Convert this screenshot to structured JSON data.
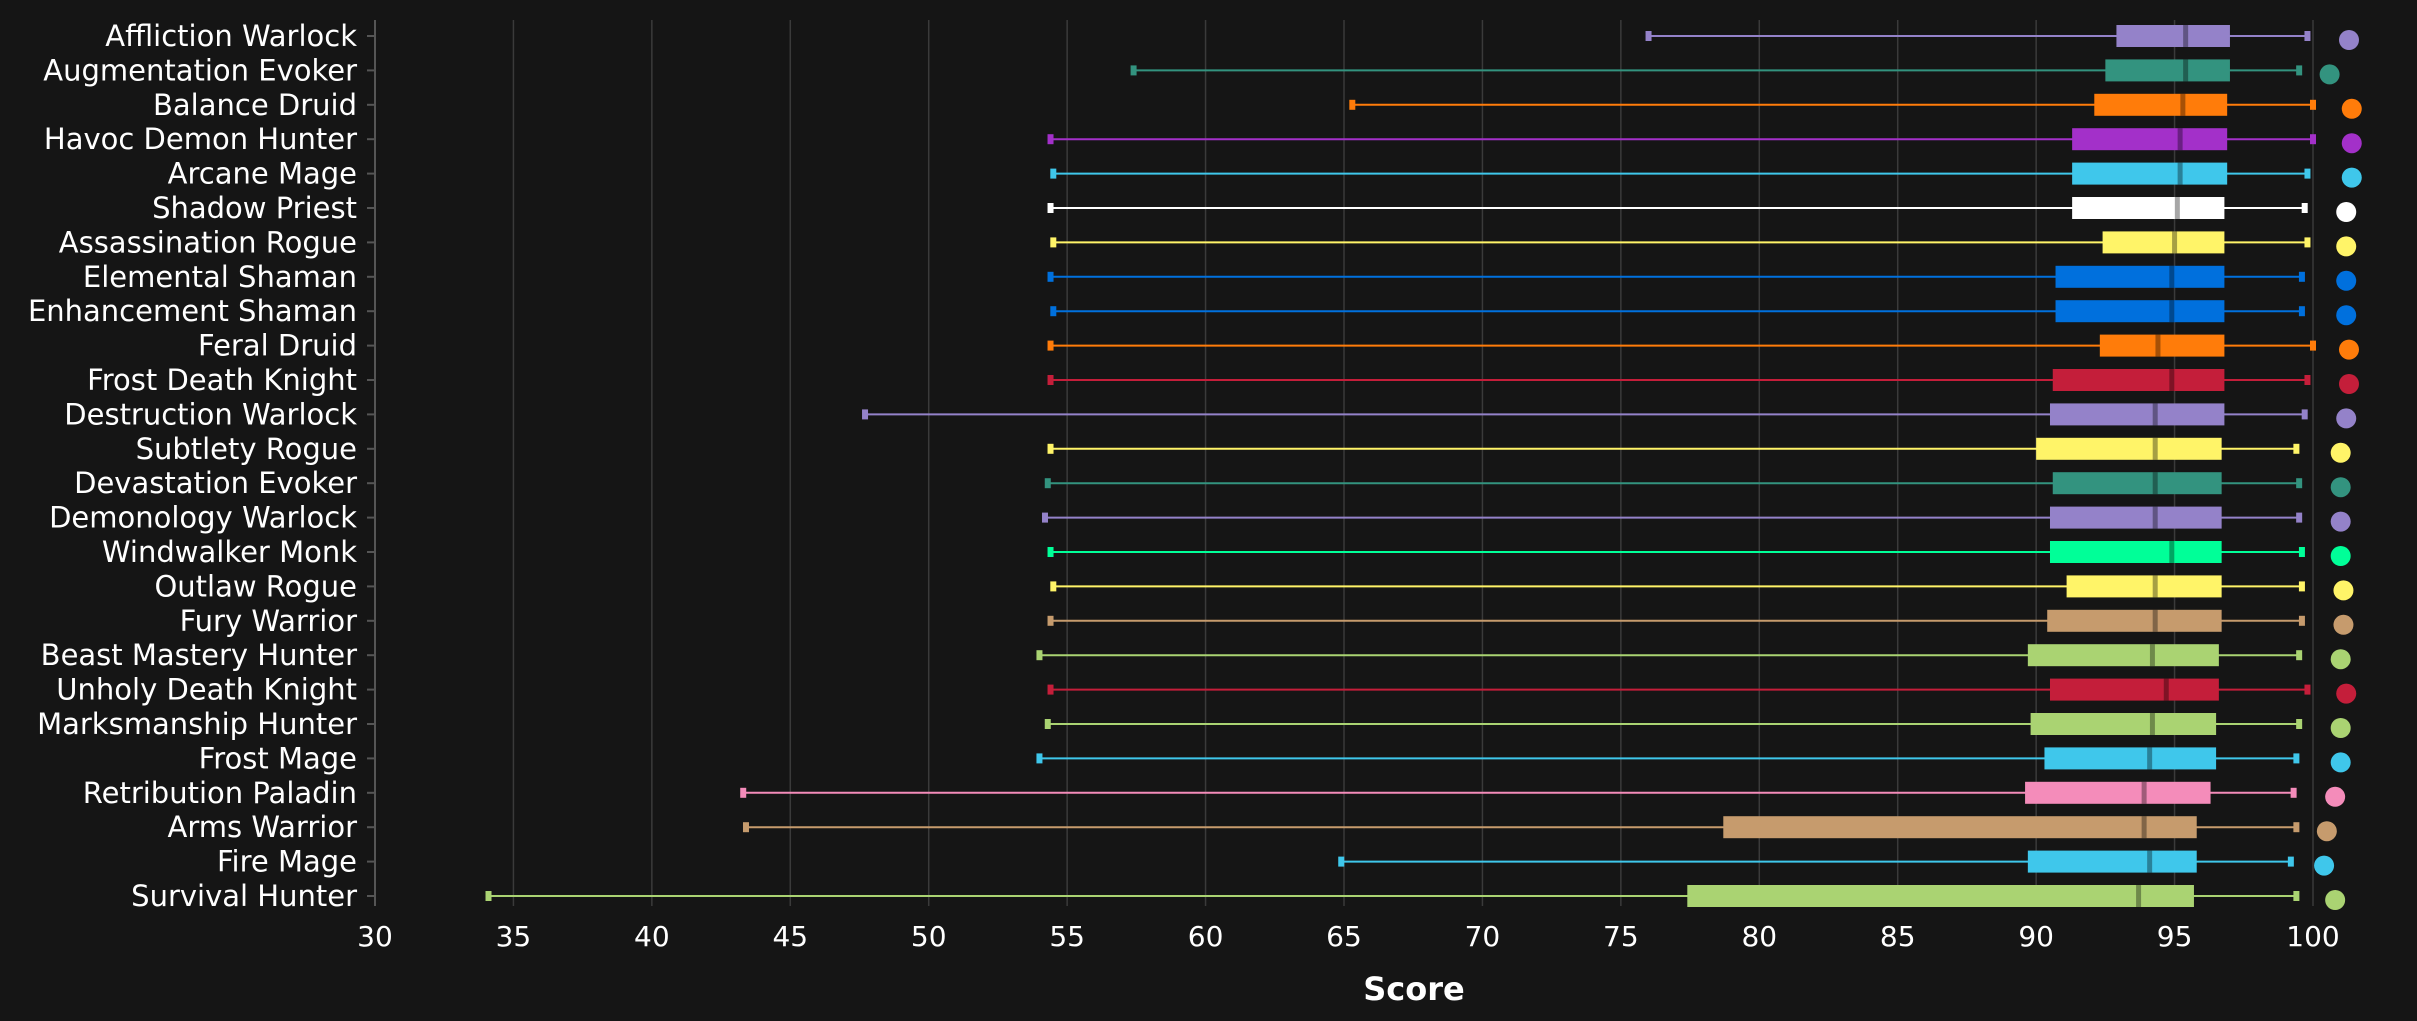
{
  "chart_data": {
    "type": "boxplot",
    "title": "",
    "xlabel": "Score",
    "ylabel": "",
    "xlim": [
      30,
      100
    ],
    "xticks": [
      30,
      35,
      40,
      45,
      50,
      55,
      60,
      65,
      70,
      75,
      80,
      85,
      90,
      95,
      100
    ],
    "grid": true,
    "background": "#151515",
    "series": [
      {
        "name": "Affliction Warlock",
        "color": "#9482C9",
        "min": 76.0,
        "q1": 92.9,
        "median": 95.4,
        "q3": 97.0,
        "max": 99.8,
        "dot": 101.3
      },
      {
        "name": "Augmentation Evoker",
        "color": "#33937F",
        "min": 57.4,
        "q1": 92.5,
        "median": 95.4,
        "q3": 97.0,
        "max": 99.5,
        "dot": 100.6
      },
      {
        "name": "Balance Druid",
        "color": "#FF7C0A",
        "min": 65.3,
        "q1": 92.1,
        "median": 95.3,
        "q3": 96.9,
        "max": 100.0,
        "dot": 101.4
      },
      {
        "name": "Havoc Demon Hunter",
        "color": "#A330C9",
        "min": 54.4,
        "q1": 91.3,
        "median": 95.2,
        "q3": 96.9,
        "max": 100.0,
        "dot": 101.4
      },
      {
        "name": "Arcane Mage",
        "color": "#3FC7EB",
        "min": 54.5,
        "q1": 91.3,
        "median": 95.2,
        "q3": 96.9,
        "max": 99.8,
        "dot": 101.4
      },
      {
        "name": "Shadow Priest",
        "color": "#FFFFFF",
        "min": 54.4,
        "q1": 91.3,
        "median": 95.1,
        "q3": 96.8,
        "max": 99.7,
        "dot": 101.2
      },
      {
        "name": "Assassination Rogue",
        "color": "#FFF468",
        "min": 54.5,
        "q1": 92.4,
        "median": 95.0,
        "q3": 96.8,
        "max": 99.8,
        "dot": 101.2
      },
      {
        "name": "Elemental Shaman",
        "color": "#0070DD",
        "min": 54.4,
        "q1": 90.7,
        "median": 94.9,
        "q3": 96.8,
        "max": 99.6,
        "dot": 101.2
      },
      {
        "name": "Enhancement Shaman",
        "color": "#0070DD",
        "min": 54.5,
        "q1": 90.7,
        "median": 94.9,
        "q3": 96.8,
        "max": 99.6,
        "dot": 101.2
      },
      {
        "name": "Feral Druid",
        "color": "#FF7C0A",
        "min": 54.4,
        "q1": 92.3,
        "median": 94.4,
        "q3": 96.8,
        "max": 100.0,
        "dot": 101.3
      },
      {
        "name": "Frost Death Knight",
        "color": "#C41E3A",
        "min": 54.4,
        "q1": 90.6,
        "median": 94.9,
        "q3": 96.8,
        "max": 99.8,
        "dot": 101.3
      },
      {
        "name": "Destruction Warlock",
        "color": "#9482C9",
        "min": 47.7,
        "q1": 90.5,
        "median": 94.3,
        "q3": 96.8,
        "max": 99.7,
        "dot": 101.2
      },
      {
        "name": "Subtlety Rogue",
        "color": "#FFF468",
        "min": 54.4,
        "q1": 90.0,
        "median": 94.3,
        "q3": 96.7,
        "max": 99.4,
        "dot": 101.0
      },
      {
        "name": "Devastation Evoker",
        "color": "#33937F",
        "min": 54.3,
        "q1": 90.6,
        "median": 94.3,
        "q3": 96.7,
        "max": 99.5,
        "dot": 101.0
      },
      {
        "name": "Demonology Warlock",
        "color": "#9482C9",
        "min": 54.2,
        "q1": 90.5,
        "median": 94.3,
        "q3": 96.7,
        "max": 99.5,
        "dot": 101.0
      },
      {
        "name": "Windwalker Monk",
        "color": "#00FF98",
        "min": 54.4,
        "q1": 90.5,
        "median": 94.9,
        "q3": 96.7,
        "max": 99.6,
        "dot": 101.0
      },
      {
        "name": "Outlaw Rogue",
        "color": "#FFF468",
        "min": 54.5,
        "q1": 91.1,
        "median": 94.3,
        "q3": 96.7,
        "max": 99.6,
        "dot": 101.1
      },
      {
        "name": "Fury Warrior",
        "color": "#C69B6D",
        "min": 54.4,
        "q1": 90.4,
        "median": 94.3,
        "q3": 96.7,
        "max": 99.6,
        "dot": 101.1
      },
      {
        "name": "Beast Mastery Hunter",
        "color": "#AAD372",
        "min": 54.0,
        "q1": 89.7,
        "median": 94.2,
        "q3": 96.6,
        "max": 99.5,
        "dot": 101.0
      },
      {
        "name": "Unholy Death Knight",
        "color": "#C41E3A",
        "min": 54.4,
        "q1": 90.5,
        "median": 94.7,
        "q3": 96.6,
        "max": 99.8,
        "dot": 101.2
      },
      {
        "name": "Marksmanship Hunter",
        "color": "#AAD372",
        "min": 54.3,
        "q1": 89.8,
        "median": 94.2,
        "q3": 96.5,
        "max": 99.5,
        "dot": 101.0
      },
      {
        "name": "Frost Mage",
        "color": "#3FC7EB",
        "min": 54.0,
        "q1": 90.3,
        "median": 94.1,
        "q3": 96.5,
        "max": 99.4,
        "dot": 101.0
      },
      {
        "name": "Retribution Paladin",
        "color": "#F48CBA",
        "min": 43.3,
        "q1": 89.6,
        "median": 93.9,
        "q3": 96.3,
        "max": 99.3,
        "dot": 100.8
      },
      {
        "name": "Arms Warrior",
        "color": "#C69B6D",
        "min": 43.4,
        "q1": 78.7,
        "median": 93.9,
        "q3": 95.8,
        "max": 99.4,
        "dot": 100.5
      },
      {
        "name": "Fire Mage",
        "color": "#3FC7EB",
        "min": 64.9,
        "q1": 89.7,
        "median": 94.1,
        "q3": 95.8,
        "max": 99.2,
        "dot": 100.4
      },
      {
        "name": "Survival Hunter",
        "color": "#AAD372",
        "min": 34.1,
        "q1": 77.4,
        "median": 93.7,
        "q3": 95.7,
        "max": 99.4,
        "dot": 100.8
      }
    ]
  }
}
